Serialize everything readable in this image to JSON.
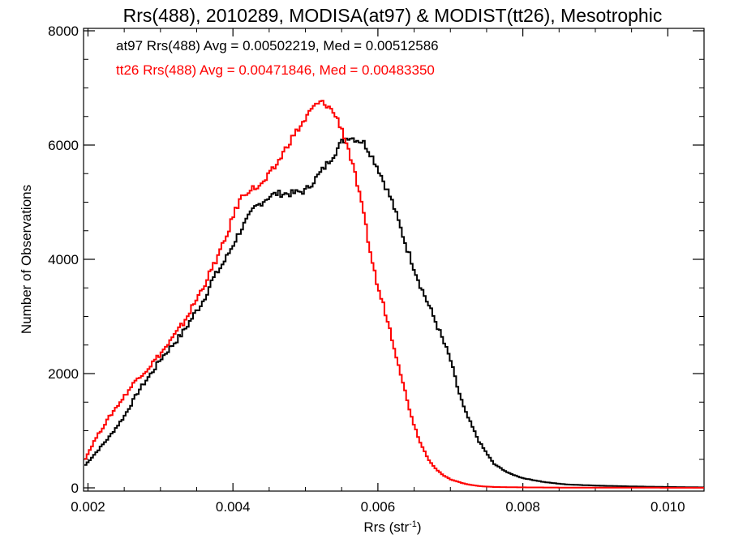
{
  "chart_data": {
    "type": "line",
    "title": "Rrs(488), 2010289, MODISA(at97) & MODIST(tt26), Mesotrophic",
    "xlabel": "Rrs (str",
    "xlabel_sup": "-1",
    "xlabel_close": ")",
    "ylabel": "Number of Observations",
    "xlim": [
      0.00195,
      0.0105
    ],
    "ylim": [
      0,
      8000
    ],
    "x_ticks": [
      0.002,
      0.004,
      0.006,
      0.008,
      0.01
    ],
    "x_tick_labels": [
      "0.002",
      "0.004",
      "0.006",
      "0.008",
      "0.010"
    ],
    "y_ticks": [
      0,
      2000,
      4000,
      6000,
      8000
    ],
    "y_tick_labels": [
      "0",
      "2000",
      "4000",
      "6000",
      "8000"
    ],
    "grid": false,
    "annotations": [
      {
        "text": "at97 Rrs(488) Avg = 0.00502219, Med = 0.00512586",
        "color": "#000000"
      },
      {
        "text": "tt26 Rrs(488) Avg = 0.00471846, Med = 0.00483350",
        "color": "#ff0000"
      }
    ],
    "series": [
      {
        "color": "#000000",
        "x": [
          0.00195,
          0.0021,
          0.0023,
          0.0025,
          0.0027,
          0.0029,
          0.003,
          0.0031,
          0.0033,
          0.0035,
          0.0036,
          0.0037,
          0.0039,
          0.0041,
          0.0043,
          0.0045,
          0.0046,
          0.0048,
          0.005,
          0.0052,
          0.0054,
          0.0055,
          0.0056,
          0.0058,
          0.0059,
          0.006,
          0.0062,
          0.0064,
          0.0066,
          0.0068,
          0.007,
          0.0071,
          0.0072,
          0.0074,
          0.0076,
          0.0078,
          0.008,
          0.0083,
          0.0086,
          0.009,
          0.0095,
          0.01,
          0.0105
        ],
        "y": [
          380,
          600,
          900,
          1250,
          1700,
          2050,
          2250,
          2400,
          2700,
          3100,
          3300,
          3600,
          4000,
          4500,
          4900,
          5100,
          5150,
          5150,
          5200,
          5500,
          5850,
          6050,
          6150,
          6050,
          5850,
          5600,
          5000,
          4200,
          3500,
          2900,
          2250,
          1750,
          1350,
          800,
          420,
          260,
          170,
          100,
          60,
          40,
          25,
          15,
          8
        ]
      },
      {
        "color": "#ff0000",
        "x": [
          0.00195,
          0.0021,
          0.0023,
          0.0025,
          0.0027,
          0.0028,
          0.0029,
          0.0031,
          0.0033,
          0.0035,
          0.0037,
          0.0039,
          0.004,
          0.0041,
          0.0042,
          0.0043,
          0.0044,
          0.0046,
          0.0048,
          0.005,
          0.0051,
          0.0052,
          0.0053,
          0.0054,
          0.0055,
          0.0056,
          0.0057,
          0.0058,
          0.0059,
          0.006,
          0.0061,
          0.0062,
          0.0063,
          0.0064,
          0.0065,
          0.0066,
          0.0067,
          0.0068,
          0.0069,
          0.007,
          0.0072,
          0.0074,
          0.0076,
          0.008,
          0.0085,
          0.009,
          0.01,
          0.0105
        ],
        "y": [
          480,
          850,
          1250,
          1600,
          1950,
          2050,
          2200,
          2500,
          2850,
          3300,
          3800,
          4350,
          4750,
          5050,
          5200,
          5250,
          5300,
          5650,
          6100,
          6450,
          6650,
          6750,
          6700,
          6550,
          6300,
          5900,
          5400,
          4800,
          4100,
          3500,
          3100,
          2600,
          2100,
          1550,
          1100,
          750,
          500,
          330,
          220,
          150,
          70,
          30,
          15,
          8,
          5,
          3,
          2,
          2
        ]
      }
    ]
  }
}
